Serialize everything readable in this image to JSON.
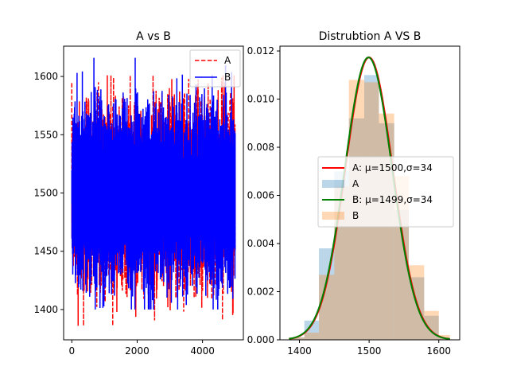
{
  "chart_data": [
    {
      "type": "line",
      "title": "A vs B",
      "xlabel": "",
      "ylabel": "",
      "xlim": [
        -250,
        5250
      ],
      "ylim": [
        1374,
        1626
      ],
      "xticks": [
        0,
        2000,
        4000
      ],
      "yticks": [
        1400,
        1450,
        1500,
        1550,
        1600
      ],
      "legend_position": "upper right",
      "n_samples": 5000,
      "series": [
        {
          "name": "A",
          "color": "#ff0000",
          "style": "dashed",
          "mean": 1500,
          "std": 34,
          "min": 1386,
          "max": 1601
        },
        {
          "name": "B",
          "color": "#0000ff",
          "style": "solid",
          "mean": 1499,
          "std": 34,
          "min": 1400,
          "max": 1616
        }
      ]
    },
    {
      "type": "histogram",
      "title": "Distrubtion A VS B",
      "xlabel": "",
      "ylabel": "",
      "xlim": [
        1372,
        1630
      ],
      "ylim": [
        0,
        0.0122
      ],
      "xticks": [
        1400,
        1500,
        1600
      ],
      "yticks": [
        0.0,
        0.002,
        0.004,
        0.006,
        0.008,
        0.01,
        0.012
      ],
      "legend_position": "center right",
      "bins": [
        {
          "x0": 1385,
          "x1": 1407,
          "a": 0.0001,
          "b": 0.0001
        },
        {
          "x0": 1407,
          "x1": 1428,
          "a": 0.0008,
          "b": 0.0003
        },
        {
          "x0": 1428,
          "x1": 1450,
          "a": 0.0038,
          "b": 0.0027
        },
        {
          "x0": 1450,
          "x1": 1471,
          "a": 0.007,
          "b": 0.0064
        },
        {
          "x0": 1471,
          "x1": 1493,
          "a": 0.0092,
          "b": 0.0108
        },
        {
          "x0": 1493,
          "x1": 1514,
          "a": 0.011,
          "b": 0.0107
        },
        {
          "x0": 1514,
          "x1": 1536,
          "a": 0.009,
          "b": 0.0094
        },
        {
          "x0": 1536,
          "x1": 1557,
          "a": 0.0054,
          "b": 0.0068
        },
        {
          "x0": 1557,
          "x1": 1579,
          "a": 0.0026,
          "b": 0.0031
        },
        {
          "x0": 1579,
          "x1": 1600,
          "a": 0.001,
          "b": 0.0012
        },
        {
          "x0": 1600,
          "x1": 1616,
          "a": 0.0001,
          "b": 0.0002
        }
      ],
      "fits": [
        {
          "name": "A: μ=1500,σ=34",
          "mu": 1500,
          "sigma": 34,
          "color": "#ff0000"
        },
        {
          "name": "B: μ=1499,σ=34",
          "mu": 1499,
          "sigma": 34,
          "color": "#008000"
        }
      ],
      "hist_series": [
        {
          "name": "A",
          "color": "#1f77b4",
          "alpha": 0.3
        },
        {
          "name": "B",
          "color": "#ff7f0e",
          "alpha": 0.3
        }
      ],
      "fit_xrange": [
        1385,
        1616
      ]
    }
  ]
}
